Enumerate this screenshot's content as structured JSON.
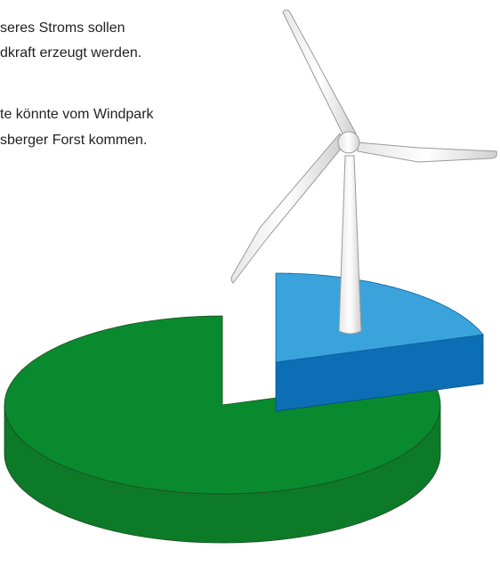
{
  "chart_data": {
    "type": "pie",
    "annotations": [
      "seres Stroms sollen",
      "dkraft erzeugt werden.",
      "te könnte vom Windpark",
      "sberger Forst kommen."
    ],
    "values": [
      20,
      80
    ],
    "colors": [
      "#3aa3dc",
      "#0a8a2e"
    ],
    "side_colors": [
      "#0c6fb6",
      "#0d7a28"
    ]
  }
}
